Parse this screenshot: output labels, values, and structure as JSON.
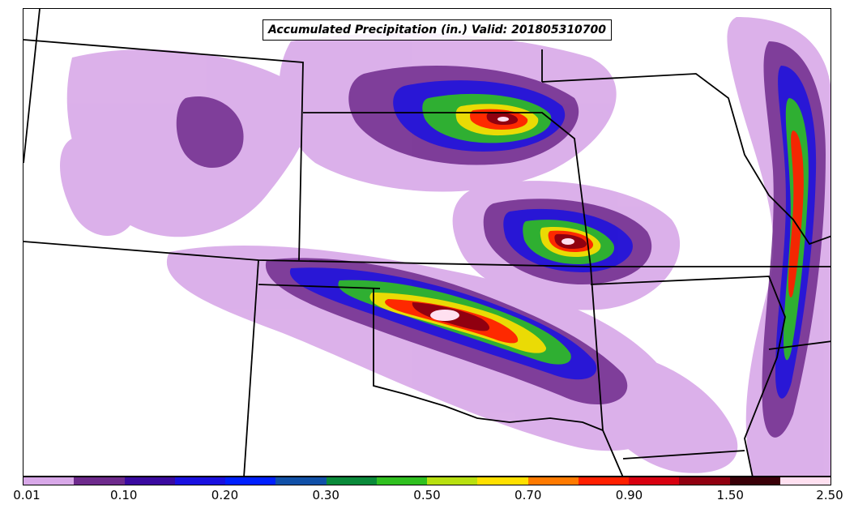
{
  "map": {
    "title": "Accumulated Precipitation (in.) Valid: 201805310700"
  },
  "colorbar": {
    "colors": [
      "#d8a8e8",
      "#6e2a8c",
      "#3a0aa0",
      "#1a10e0",
      "#0020ff",
      "#1050a8",
      "#0a8a3a",
      "#30c020",
      "#b8e010",
      "#ffe000",
      "#ff7a00",
      "#ff2000",
      "#d80010",
      "#900010",
      "#3a0008",
      "#ffe0f0"
    ],
    "tick_labels": [
      "0.01",
      "0.10",
      "0.20",
      "0.30",
      "0.50",
      "0.70",
      "0.90",
      "1.50",
      "2.50"
    ]
  }
}
